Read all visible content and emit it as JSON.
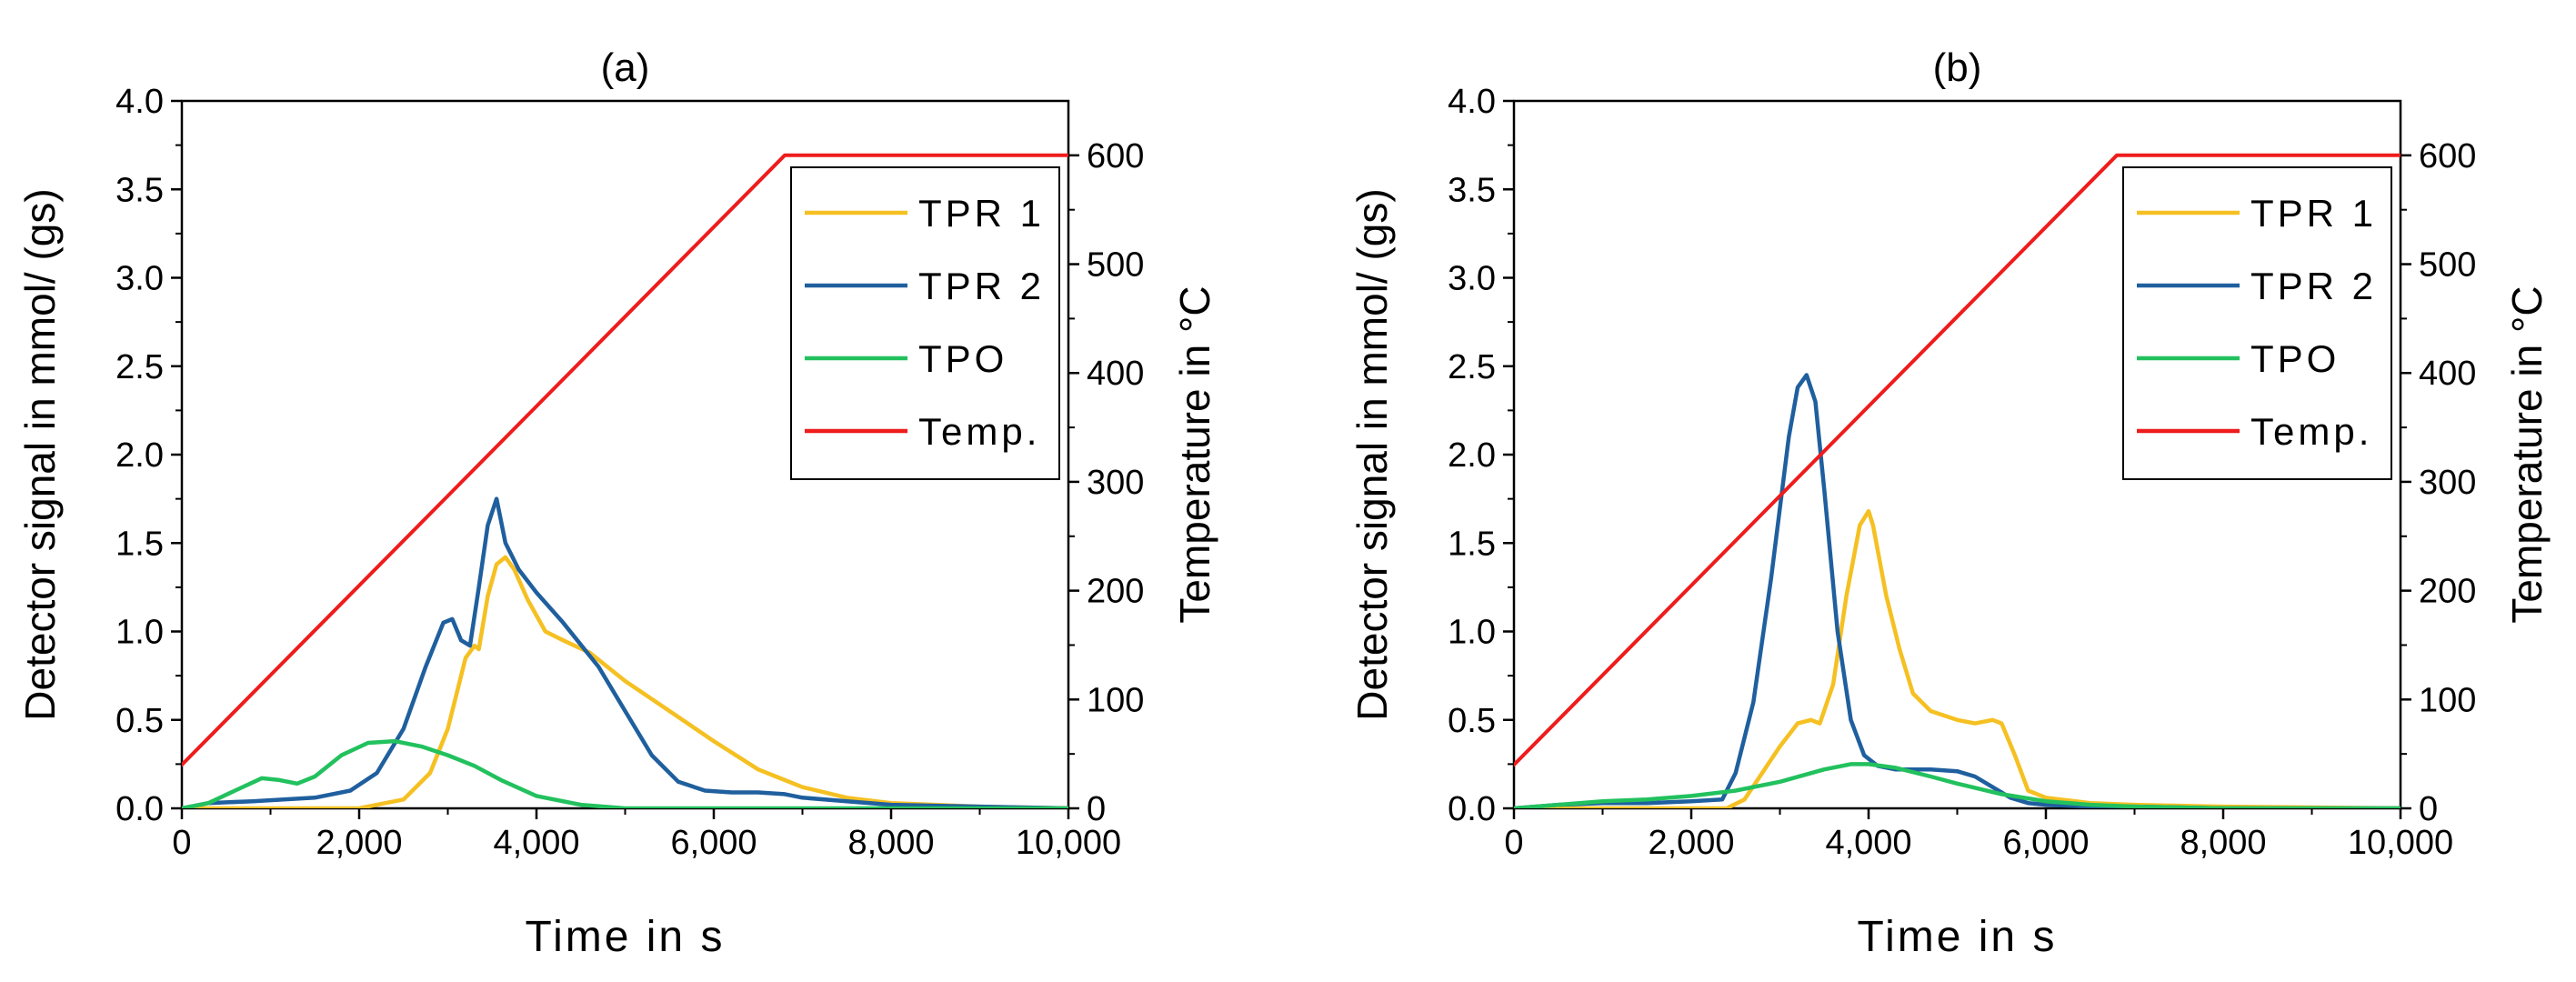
{
  "chart_data": [
    {
      "type": "line",
      "title": "(a)",
      "xlabel": "Time in s",
      "ylabel": "Detector signal in mmol/ (gs)",
      "y2label": "Temperature in °C",
      "xlim": [
        0,
        10000
      ],
      "ylim": [
        0,
        4.0
      ],
      "y2lim": [
        0,
        650
      ],
      "xticks": [
        "0",
        "2,000",
        "4,000",
        "6,000",
        "8,000",
        "10,000"
      ],
      "yticks": [
        "0.0",
        "0.5",
        "1.0",
        "1.5",
        "2.0",
        "2.5",
        "3.0",
        "3.5",
        "4.0"
      ],
      "y2ticks": [
        "0",
        "100",
        "200",
        "300",
        "400",
        "500",
        "600"
      ],
      "legend_position": "top-right",
      "series": [
        {
          "name": "TPR 1",
          "axis": "left",
          "color": "#F5C022",
          "x": [
            0,
            1000,
            2000,
            2200,
            2500,
            2800,
            3000,
            3200,
            3300,
            3350,
            3450,
            3550,
            3650,
            3750,
            3900,
            4100,
            4300,
            4600,
            5000,
            5500,
            6000,
            6500,
            6800,
            7000,
            7500,
            8000,
            9000,
            10000
          ],
          "y": [
            0,
            0,
            0,
            0.02,
            0.05,
            0.2,
            0.45,
            0.85,
            0.92,
            0.9,
            1.2,
            1.38,
            1.42,
            1.35,
            1.18,
            1.0,
            0.95,
            0.88,
            0.72,
            0.55,
            0.38,
            0.22,
            0.16,
            0.12,
            0.06,
            0.03,
            0.01,
            0
          ]
        },
        {
          "name": "TPR 2",
          "axis": "left",
          "color": "#1F5F9E",
          "x": [
            0,
            300,
            800,
            1500,
            1900,
            2200,
            2500,
            2750,
            2950,
            3050,
            3150,
            3250,
            3350,
            3450,
            3550,
            3650,
            3800,
            4000,
            4300,
            4700,
            5000,
            5300,
            5600,
            5900,
            6200,
            6500,
            6800,
            7000,
            7500,
            8000,
            9000,
            10000
          ],
          "y": [
            0,
            0.03,
            0.04,
            0.06,
            0.1,
            0.2,
            0.45,
            0.8,
            1.05,
            1.07,
            0.95,
            0.92,
            1.25,
            1.6,
            1.75,
            1.5,
            1.35,
            1.22,
            1.05,
            0.8,
            0.55,
            0.3,
            0.15,
            0.1,
            0.09,
            0.09,
            0.08,
            0.06,
            0.04,
            0.02,
            0.01,
            0
          ]
        },
        {
          "name": "TPO",
          "axis": "left",
          "color": "#22C15E",
          "x": [
            0,
            300,
            600,
            900,
            1100,
            1300,
            1500,
            1800,
            2100,
            2400,
            2700,
            3000,
            3300,
            3600,
            4000,
            4500,
            5000,
            6000,
            7000,
            10000
          ],
          "y": [
            0,
            0.03,
            0.1,
            0.17,
            0.16,
            0.14,
            0.18,
            0.3,
            0.37,
            0.38,
            0.35,
            0.3,
            0.24,
            0.16,
            0.07,
            0.02,
            0,
            0,
            0,
            0
          ]
        },
        {
          "name": "Temp.",
          "axis": "right",
          "color": "#EE1C1C",
          "x": [
            0,
            6800,
            10000
          ],
          "y": [
            40,
            600,
            600
          ]
        }
      ]
    },
    {
      "type": "line",
      "title": "(b)",
      "xlabel": "Time in s",
      "ylabel": "Detector signal in mmol/ (gs)",
      "y2label": "Temperature in °C",
      "xlim": [
        0,
        10000
      ],
      "ylim": [
        0,
        4.0
      ],
      "y2lim": [
        0,
        650
      ],
      "xticks": [
        "0",
        "2,000",
        "4,000",
        "6,000",
        "8,000",
        "10,000"
      ],
      "yticks": [
        "0.0",
        "0.5",
        "1.0",
        "1.5",
        "2.0",
        "2.5",
        "3.0",
        "3.5",
        "4.0"
      ],
      "y2ticks": [
        "0",
        "100",
        "200",
        "300",
        "400",
        "500",
        "600"
      ],
      "legend_position": "top-right",
      "series": [
        {
          "name": "TPR 1",
          "axis": "left",
          "color": "#F5C022",
          "x": [
            0,
            2000,
            2400,
            2600,
            2800,
            3000,
            3200,
            3350,
            3450,
            3600,
            3750,
            3900,
            4000,
            4050,
            4200,
            4350,
            4500,
            4700,
            5000,
            5200,
            5400,
            5500,
            5650,
            5800,
            6000,
            6500,
            7000,
            8000,
            10000
          ],
          "y": [
            0,
            0,
            0,
            0.05,
            0.2,
            0.35,
            0.48,
            0.5,
            0.48,
            0.7,
            1.2,
            1.6,
            1.68,
            1.6,
            1.2,
            0.9,
            0.65,
            0.55,
            0.5,
            0.48,
            0.5,
            0.48,
            0.3,
            0.1,
            0.06,
            0.03,
            0.02,
            0.01,
            0
          ]
        },
        {
          "name": "TPR 2",
          "axis": "left",
          "color": "#1F5F9E",
          "x": [
            0,
            500,
            1000,
            1500,
            2000,
            2350,
            2500,
            2700,
            2900,
            3100,
            3200,
            3300,
            3400,
            3500,
            3650,
            3800,
            3950,
            4100,
            4300,
            4700,
            5000,
            5200,
            5400,
            5600,
            5800,
            6000,
            6500,
            7000,
            8000,
            10000
          ],
          "y": [
            0,
            0.02,
            0.03,
            0.03,
            0.04,
            0.05,
            0.2,
            0.6,
            1.3,
            2.1,
            2.38,
            2.45,
            2.3,
            1.8,
            1.0,
            0.5,
            0.3,
            0.24,
            0.22,
            0.22,
            0.21,
            0.18,
            0.12,
            0.06,
            0.03,
            0.02,
            0.01,
            0.01,
            0,
            0
          ]
        },
        {
          "name": "TPO",
          "axis": "left",
          "color": "#22C15E",
          "x": [
            0,
            500,
            1000,
            1500,
            2000,
            2500,
            3000,
            3500,
            3800,
            4000,
            4300,
            4700,
            5000,
            5500,
            6000,
            6500,
            7000,
            8000,
            10000
          ],
          "y": [
            0,
            0.02,
            0.04,
            0.05,
            0.07,
            0.1,
            0.15,
            0.22,
            0.25,
            0.25,
            0.23,
            0.18,
            0.14,
            0.08,
            0.04,
            0.02,
            0.01,
            0,
            0
          ]
        },
        {
          "name": "Temp.",
          "axis": "right",
          "color": "#EE1C1C",
          "x": [
            0,
            6800,
            10000
          ],
          "y": [
            40,
            600,
            600
          ]
        }
      ]
    }
  ]
}
